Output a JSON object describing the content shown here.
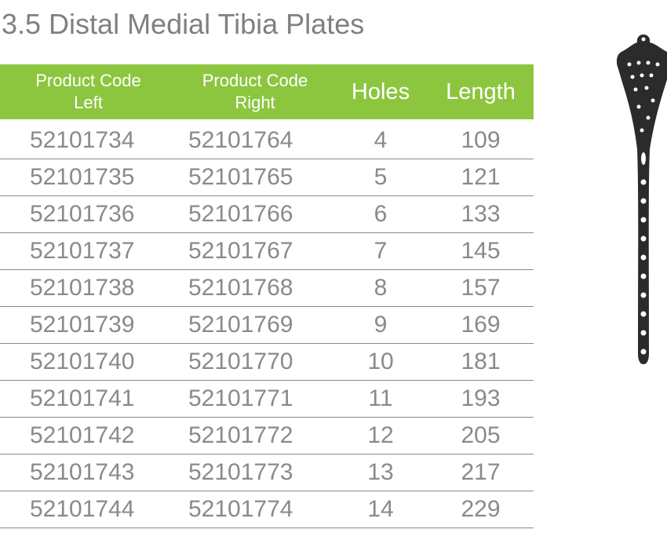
{
  "title": "3.5 Distal Medial Tibia Plates",
  "header": {
    "code_left_line1": "Product Code",
    "code_left_line2": "Left",
    "code_right_line1": "Product Code",
    "code_right_line2": "Right",
    "holes": "Holes",
    "length": "Length"
  },
  "rows": [
    {
      "left": "52101734",
      "right": "52101764",
      "holes": "4",
      "length": "109"
    },
    {
      "left": "52101735",
      "right": "52101765",
      "holes": "5",
      "length": "121"
    },
    {
      "left": "52101736",
      "right": "52101766",
      "holes": "6",
      "length": "133"
    },
    {
      "left": "52101737",
      "right": "52101767",
      "holes": "7",
      "length": "145"
    },
    {
      "left": "52101738",
      "right": "52101768",
      "holes": "8",
      "length": "157"
    },
    {
      "left": "52101739",
      "right": "52101769",
      "holes": "9",
      "length": "169"
    },
    {
      "left": "52101740",
      "right": "52101770",
      "holes": "10",
      "length": "181"
    },
    {
      "left": "52101741",
      "right": "52101771",
      "holes": "11",
      "length": "193"
    },
    {
      "left": "52101742",
      "right": "52101772",
      "holes": "12",
      "length": "205"
    },
    {
      "left": "52101743",
      "right": "52101773",
      "holes": "13",
      "length": "217"
    },
    {
      "left": "52101744",
      "right": "52101774",
      "holes": "14",
      "length": "229"
    }
  ],
  "colors": {
    "header_bg": "#8cc63f",
    "text": "#8a8a8a",
    "plate": "#2b2b2b"
  },
  "image": {
    "subject": "tibia-plate-icon"
  }
}
